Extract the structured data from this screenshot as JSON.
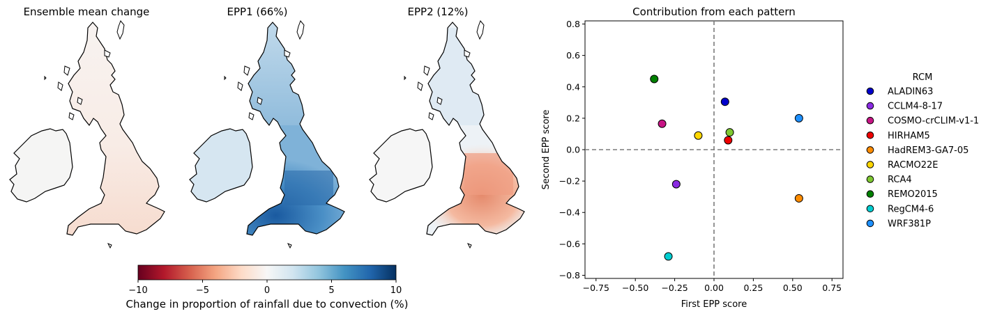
{
  "maps": {
    "panels": [
      {
        "title": "Ensemble mean change"
      },
      {
        "title": "EPP1 (66%)"
      },
      {
        "title": "EPP2 (12%)"
      }
    ],
    "colorbar": {
      "label": "Change in proportion of rainfall due to convection (%)",
      "ticks": [
        "−10",
        "−5",
        "0",
        "5",
        "10"
      ],
      "colors": [
        "#67001f",
        "#b2182b",
        "#d6604d",
        "#f4a582",
        "#fddbc7",
        "#f7f7f7",
        "#d1e5f0",
        "#92c5de",
        "#4393c3",
        "#2166ac",
        "#053061"
      ]
    }
  },
  "chart_data": {
    "type": "scatter",
    "title": "Contribution from each pattern",
    "xlabel": "First EPP score",
    "ylabel": "Second EPP score",
    "xlim": [
      -0.82,
      0.82
    ],
    "ylim": [
      -0.82,
      0.82
    ],
    "xticks": [
      -0.75,
      -0.5,
      -0.25,
      0.0,
      0.25,
      0.5,
      0.75
    ],
    "xtick_labels": [
      "−0.75",
      "−0.50",
      "−0.25",
      "0.00",
      "0.25",
      "0.50",
      "0.75"
    ],
    "yticks": [
      -0.8,
      -0.6,
      -0.4,
      -0.2,
      0.0,
      0.2,
      0.4,
      0.6,
      0.8
    ],
    "ytick_labels": [
      "−0.8",
      "−0.6",
      "−0.4",
      "−0.2",
      "0.0",
      "0.2",
      "0.4",
      "0.6",
      "0.8"
    ],
    "reference_lines": {
      "x": 0,
      "y": 0,
      "style": "dashed"
    },
    "legend": {
      "title": "RCM",
      "placement": "right"
    },
    "points": [
      {
        "name": "ALADIN63",
        "x": 0.07,
        "y": 0.305,
        "color": "#0000cc"
      },
      {
        "name": "CCLM4-8-17",
        "x": -0.24,
        "y": -0.22,
        "color": "#8a2be2"
      },
      {
        "name": "COSMO-crCLIM-v1-1",
        "x": -0.33,
        "y": 0.165,
        "color": "#c71585"
      },
      {
        "name": "HIRHAM5",
        "x": 0.09,
        "y": 0.06,
        "color": "#ee0000"
      },
      {
        "name": "HadREM3-GA7-05",
        "x": 0.54,
        "y": -0.31,
        "color": "#ff8c00"
      },
      {
        "name": "RACMO22E",
        "x": -0.1,
        "y": 0.09,
        "color": "#ffd700"
      },
      {
        "name": "RCA4",
        "x": 0.1,
        "y": 0.11,
        "color": "#7ec832"
      },
      {
        "name": "REMO2015",
        "x": -0.38,
        "y": 0.45,
        "color": "#008000"
      },
      {
        "name": "RegCM4-6",
        "x": -0.29,
        "y": -0.68,
        "color": "#00ced1"
      },
      {
        "name": "WRF381P",
        "x": 0.54,
        "y": 0.2,
        "color": "#1e90ff"
      }
    ]
  }
}
